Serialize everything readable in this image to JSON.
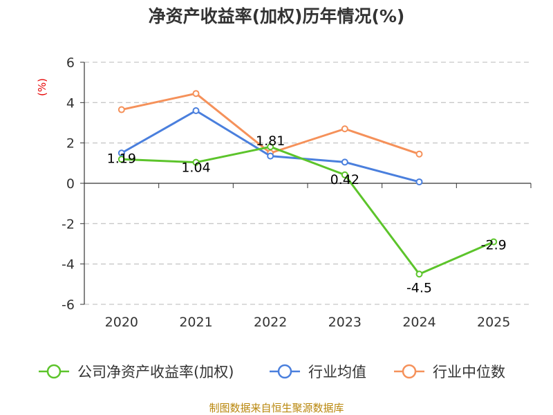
{
  "title": "净资产收益率(加权)历年情况(%)",
  "source": "制图数据来自恒生聚源数据库",
  "chart_data": {
    "type": "line",
    "title": "净资产收益率(加权)历年情况(%)",
    "ylabel": "(%)",
    "xlabel": "",
    "ylim": [
      -6,
      6
    ],
    "yticks": [
      6,
      4,
      2,
      0,
      -2,
      -4,
      -6
    ],
    "grid": true,
    "legend_position": "bottom",
    "categories": [
      "2020",
      "2021",
      "2022",
      "2023",
      "2024",
      "2025"
    ],
    "series": [
      {
        "name": "公司净资产收益率(加权)",
        "color": "#5cc42b",
        "values": [
          1.19,
          1.04,
          1.81,
          0.42,
          -4.5,
          -2.9
        ],
        "labels": [
          "1.19",
          "1.04",
          "1.81",
          "0.42",
          "-4.5",
          "-2.9"
        ]
      },
      {
        "name": "行业均值",
        "color": "#4a7fdd",
        "values": [
          1.5,
          3.6,
          1.35,
          1.05,
          0.07,
          null
        ]
      },
      {
        "name": "行业中位数",
        "color": "#f5915a",
        "values": [
          3.65,
          4.45,
          1.5,
          2.7,
          1.45,
          null
        ]
      }
    ]
  }
}
